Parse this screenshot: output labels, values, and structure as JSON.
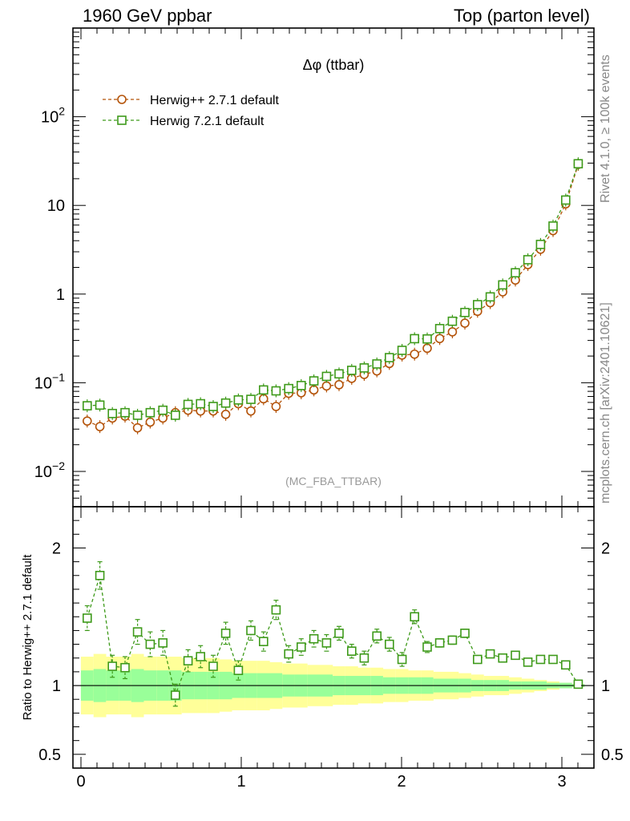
{
  "header": {
    "left": "1960 GeV ppbar",
    "right": "Top (parton level)"
  },
  "side_labels": {
    "rivet": "Rivet 4.1.0, ≥ 100k events",
    "mcplots": "mcplots.cern.ch [arXiv:2401.10621]"
  },
  "colors": {
    "herwigpp": "#b45309",
    "herwig7": "#3e9a1a",
    "band_outer": "#ffff99",
    "band_inner": "#99ff99"
  },
  "chart_data": [
    {
      "type": "line",
      "panel": "main",
      "title": "Δφ (ttbar)",
      "analysis_label": "(MC_FBA_TTBAR)",
      "xlabel": "",
      "ylabel": "",
      "yscale": "log",
      "xlim": [
        -0.05,
        3.2
      ],
      "ylim": [
        0.004,
        1000
      ],
      "xticks": [
        "0",
        "1",
        "2",
        "3"
      ],
      "yticks": [
        "10^-2",
        "10^-1",
        "1",
        "10",
        "10^2"
      ],
      "legend_position": "top-left",
      "x": [
        0.039,
        0.118,
        0.196,
        0.275,
        0.353,
        0.432,
        0.511,
        0.589,
        0.668,
        0.746,
        0.825,
        0.903,
        0.982,
        1.06,
        1.139,
        1.217,
        1.296,
        1.374,
        1.453,
        1.532,
        1.61,
        1.689,
        1.767,
        1.846,
        1.924,
        2.003,
        2.081,
        2.16,
        2.238,
        2.317,
        2.395,
        2.474,
        2.553,
        2.631,
        2.71,
        2.788,
        2.867,
        2.945,
        3.024,
        3.102
      ],
      "series": [
        {
          "name": "Herwig++ 2.7.1 default",
          "marker": "circle",
          "values": [
            0.037,
            0.032,
            0.04,
            0.042,
            0.031,
            0.036,
            0.04,
            0.046,
            0.049,
            0.048,
            0.048,
            0.044,
            0.058,
            0.048,
            0.066,
            0.054,
            0.076,
            0.077,
            0.083,
            0.092,
            0.095,
            0.112,
            0.124,
            0.136,
            0.165,
            0.205,
            0.21,
            0.245,
            0.315,
            0.375,
            0.47,
            0.64,
            0.8,
            1.06,
            1.44,
            2.15,
            3.2,
            5.2,
            10.4,
            29.0
          ]
        },
        {
          "name": "Herwig 7.2.1 default",
          "marker": "square",
          "values": [
            0.055,
            0.056,
            0.045,
            0.046,
            0.043,
            0.046,
            0.049,
            0.043,
            0.057,
            0.058,
            0.054,
            0.059,
            0.064,
            0.065,
            0.083,
            0.081,
            0.086,
            0.093,
            0.105,
            0.118,
            0.126,
            0.138,
            0.147,
            0.163,
            0.192,
            0.232,
            0.314,
            0.312,
            0.408,
            0.494,
            0.62,
            0.76,
            0.93,
            1.27,
            1.74,
            2.44,
            3.63,
            5.85,
            11.5,
            29.5
          ]
        }
      ]
    },
    {
      "type": "line",
      "panel": "ratio",
      "ylabel": "Ratio to Herwig++ 2.7.1 default",
      "xlim": [
        -0.05,
        3.2
      ],
      "ylim": [
        0.4,
        2.3
      ],
      "xticks": [
        "0",
        "1",
        "2",
        "3"
      ],
      "yticks": [
        "0.5",
        "1",
        "2"
      ],
      "reference_line": 1,
      "x": [
        0.039,
        0.118,
        0.196,
        0.275,
        0.353,
        0.432,
        0.511,
        0.589,
        0.668,
        0.746,
        0.825,
        0.903,
        0.982,
        1.06,
        1.139,
        1.217,
        1.296,
        1.374,
        1.453,
        1.532,
        1.61,
        1.689,
        1.767,
        1.846,
        1.924,
        2.003,
        2.081,
        2.16,
        2.238,
        2.317,
        2.395,
        2.474,
        2.553,
        2.631,
        2.71,
        2.788,
        2.867,
        2.945,
        3.024,
        3.102
      ],
      "band_inner": [
        0.11,
        0.12,
        0.11,
        0.11,
        0.12,
        0.11,
        0.11,
        0.11,
        0.1,
        0.1,
        0.1,
        0.1,
        0.09,
        0.09,
        0.09,
        0.09,
        0.08,
        0.08,
        0.08,
        0.08,
        0.07,
        0.07,
        0.07,
        0.07,
        0.06,
        0.06,
        0.06,
        0.06,
        0.05,
        0.05,
        0.05,
        0.04,
        0.04,
        0.04,
        0.03,
        0.03,
        0.03,
        0.02,
        0.02,
        0.01
      ],
      "band_outer": [
        0.21,
        0.23,
        0.21,
        0.21,
        0.23,
        0.21,
        0.21,
        0.21,
        0.2,
        0.2,
        0.2,
        0.19,
        0.18,
        0.18,
        0.18,
        0.17,
        0.16,
        0.16,
        0.15,
        0.15,
        0.14,
        0.14,
        0.13,
        0.13,
        0.12,
        0.12,
        0.11,
        0.11,
        0.1,
        0.1,
        0.09,
        0.08,
        0.07,
        0.07,
        0.06,
        0.05,
        0.04,
        0.03,
        0.02,
        0.01
      ],
      "series": [
        {
          "name": "Herwig 7.2.1 default",
          "marker": "square",
          "values": [
            1.49,
            1.8,
            1.14,
            1.13,
            1.39,
            1.3,
            1.31,
            0.93,
            1.18,
            1.21,
            1.14,
            1.38,
            1.11,
            1.4,
            1.32,
            1.55,
            1.23,
            1.28,
            1.34,
            1.31,
            1.38,
            1.25,
            1.2,
            1.36,
            1.3,
            1.19,
            1.5,
            1.28,
            1.31,
            1.33,
            1.38,
            1.19,
            1.23,
            1.2,
            1.22,
            1.17,
            1.19,
            1.19,
            1.15,
            1.01
          ],
          "errors": [
            0.09,
            0.1,
            0.08,
            0.08,
            0.09,
            0.09,
            0.09,
            0.08,
            0.08,
            0.08,
            0.08,
            0.08,
            0.07,
            0.07,
            0.07,
            0.07,
            0.06,
            0.06,
            0.06,
            0.06,
            0.05,
            0.05,
            0.05,
            0.05,
            0.05,
            0.05,
            0.05,
            0.04,
            0.03,
            0.03,
            0.03,
            0.02,
            0.02,
            0.02,
            0.02,
            0.01,
            0.01,
            0.01,
            0.01,
            0.01
          ]
        }
      ]
    }
  ]
}
